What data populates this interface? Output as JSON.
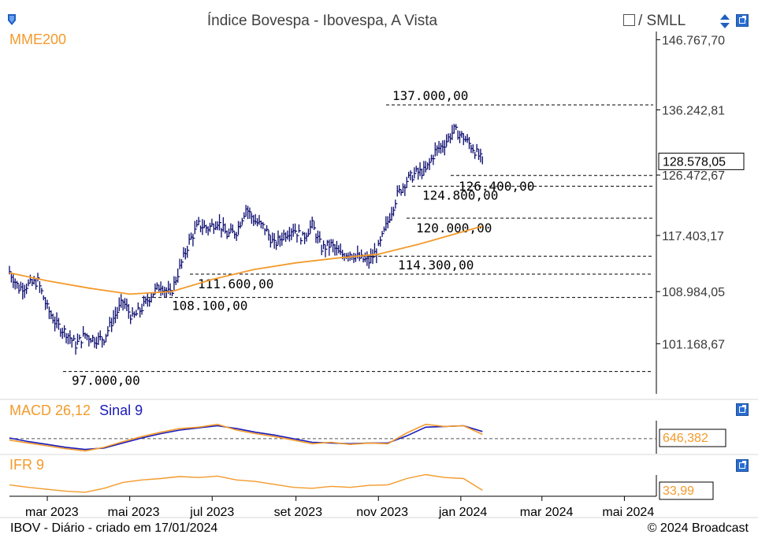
{
  "header": {
    "title": "Índice Bovespa - Ibovespa, A Vista",
    "compare_label": "/ SMLL"
  },
  "footer": {
    "left": "IBOV - Diário - criado em 17/01/2024",
    "right": "© 2024 Broadcast"
  },
  "colors": {
    "price": "#0a0a6e",
    "mme": "#f39a2b",
    "macd": "#f39a2b",
    "signal": "#1a1ab8",
    "ifr": "#f39a2b",
    "level_line": "#000000"
  },
  "chart_data": [
    {
      "type": "line",
      "panel": "price",
      "title": "Índice Bovespa - Ibovespa, A Vista",
      "x_tick_labels": [
        "mar 2023",
        "mai 2023",
        "jul 2023",
        "set 2023",
        "nov 2023",
        "jan 2024",
        "mar 2024",
        "mai 2024"
      ],
      "y_tick_labels": [
        "146.767,70",
        "136.242,81",
        "126.472,67",
        "117.403,17",
        "108.984,05",
        "101.168,67"
      ],
      "ylim": [
        94000,
        148000
      ],
      "current_value_label": "128.578,05",
      "series": [
        {
          "name": "Ibovespa",
          "style": "ohlc",
          "points": [
            [
              "2023-02-01",
              112000
            ],
            [
              "2023-02-08",
              109500
            ],
            [
              "2023-02-15",
              110000
            ],
            [
              "2023-02-22",
              110500
            ],
            [
              "2023-03-01",
              106500
            ],
            [
              "2023-03-08",
              104000
            ],
            [
              "2023-03-15",
              102800
            ],
            [
              "2023-03-22",
              101000
            ],
            [
              "2023-03-29",
              102500
            ],
            [
              "2023-04-05",
              101800
            ],
            [
              "2023-04-12",
              102000
            ],
            [
              "2023-04-19",
              105000
            ],
            [
              "2023-04-26",
              107500
            ],
            [
              "2023-05-03",
              105000
            ],
            [
              "2023-05-10",
              106500
            ],
            [
              "2023-05-17",
              108500
            ],
            [
              "2023-05-24",
              110000
            ],
            [
              "2023-05-31",
              108500
            ],
            [
              "2023-06-07",
              112500
            ],
            [
              "2023-06-14",
              116500
            ],
            [
              "2023-06-21",
              119000
            ],
            [
              "2023-06-28",
              118500
            ],
            [
              "2023-07-05",
              119500
            ],
            [
              "2023-07-12",
              117500
            ],
            [
              "2023-07-19",
              118000
            ],
            [
              "2023-07-26",
              121500
            ],
            [
              "2023-08-02",
              119500
            ],
            [
              "2023-08-09",
              118500
            ],
            [
              "2023-08-16",
              116000
            ],
            [
              "2023-08-23",
              117500
            ],
            [
              "2023-08-30",
              118500
            ],
            [
              "2023-09-06",
              117000
            ],
            [
              "2023-09-13",
              119000
            ],
            [
              "2023-09-20",
              115500
            ],
            [
              "2023-09-27",
              116000
            ],
            [
              "2023-10-04",
              114500
            ],
            [
              "2023-10-11",
              114800
            ],
            [
              "2023-10-18",
              114000
            ],
            [
              "2023-10-25",
              113500
            ],
            [
              "2023-11-01",
              115500
            ],
            [
              "2023-11-08",
              119500
            ],
            [
              "2023-11-15",
              123500
            ],
            [
              "2023-11-22",
              125700
            ],
            [
              "2023-11-29",
              126800
            ],
            [
              "2023-12-06",
              127100
            ],
            [
              "2023-12-13",
              130000
            ],
            [
              "2023-12-20",
              131200
            ],
            [
              "2023-12-27",
              133200
            ],
            [
              "2024-01-03",
              132100
            ],
            [
              "2024-01-10",
              130500
            ],
            [
              "2024-01-17",
              128578
            ]
          ]
        },
        {
          "name": "MME200",
          "style": "line",
          "points": [
            [
              "2023-02-01",
              111800
            ],
            [
              "2023-03-01",
              110600
            ],
            [
              "2023-04-01",
              109500
            ],
            [
              "2023-05-01",
              108600
            ],
            [
              "2023-06-01",
              109000
            ],
            [
              "2023-07-01",
              110800
            ],
            [
              "2023-08-01",
              112300
            ],
            [
              "2023-09-01",
              113300
            ],
            [
              "2023-10-01",
              114000
            ],
            [
              "2023-11-01",
              114600
            ],
            [
              "2023-12-01",
              116100
            ],
            [
              "2024-01-17",
              118800
            ]
          ]
        }
      ],
      "levels": [
        {
          "value": 137000,
          "label": "137.000,00"
        },
        {
          "value": 126400,
          "label": "126.400,00"
        },
        {
          "value": 124800,
          "label": "124.800,00"
        },
        {
          "value": 120000,
          "label": "120.000,00"
        },
        {
          "value": 114300,
          "label": "114.300,00"
        },
        {
          "value": 111600,
          "label": "111.600,00"
        },
        {
          "value": 108100,
          "label": "108.100,00"
        },
        {
          "value": 97000,
          "label": "97.000,00"
        }
      ]
    },
    {
      "type": "line",
      "panel": "macd",
      "legend": [
        "MACD 26,12",
        "Sinal 9"
      ],
      "current_value_label": "646,382",
      "series": [
        {
          "name": "MACD 26,12",
          "values": [
            -0.2,
            -0.6,
            -1.0,
            -1.4,
            -1.7,
            -1.2,
            -0.4,
            0.3,
            0.9,
            1.4,
            1.6,
            2.0,
            1.2,
            0.7,
            0.3,
            -0.2,
            -0.7,
            -0.5,
            -0.8,
            -0.6,
            -0.7,
            0.8,
            2.0,
            1.7,
            1.8,
            0.6
          ]
        },
        {
          "name": "Sinal 9",
          "values": [
            0.1,
            -0.4,
            -0.8,
            -1.2,
            -1.5,
            -1.3,
            -0.6,
            0.1,
            0.7,
            1.2,
            1.5,
            1.8,
            1.4,
            0.9,
            0.5,
            0.0,
            -0.5,
            -0.6,
            -0.7,
            -0.6,
            -0.6,
            0.4,
            1.6,
            1.7,
            1.8,
            1.0
          ]
        }
      ]
    },
    {
      "type": "line",
      "panel": "ifr",
      "legend": [
        "IFR 9"
      ],
      "current_value_label": "33,99",
      "series": [
        {
          "name": "IFR 9",
          "values": [
            45,
            40,
            36,
            32,
            30,
            38,
            50,
            55,
            58,
            62,
            60,
            63,
            55,
            52,
            46,
            40,
            38,
            42,
            40,
            44,
            45,
            58,
            66,
            60,
            58,
            34
          ]
        }
      ]
    }
  ]
}
